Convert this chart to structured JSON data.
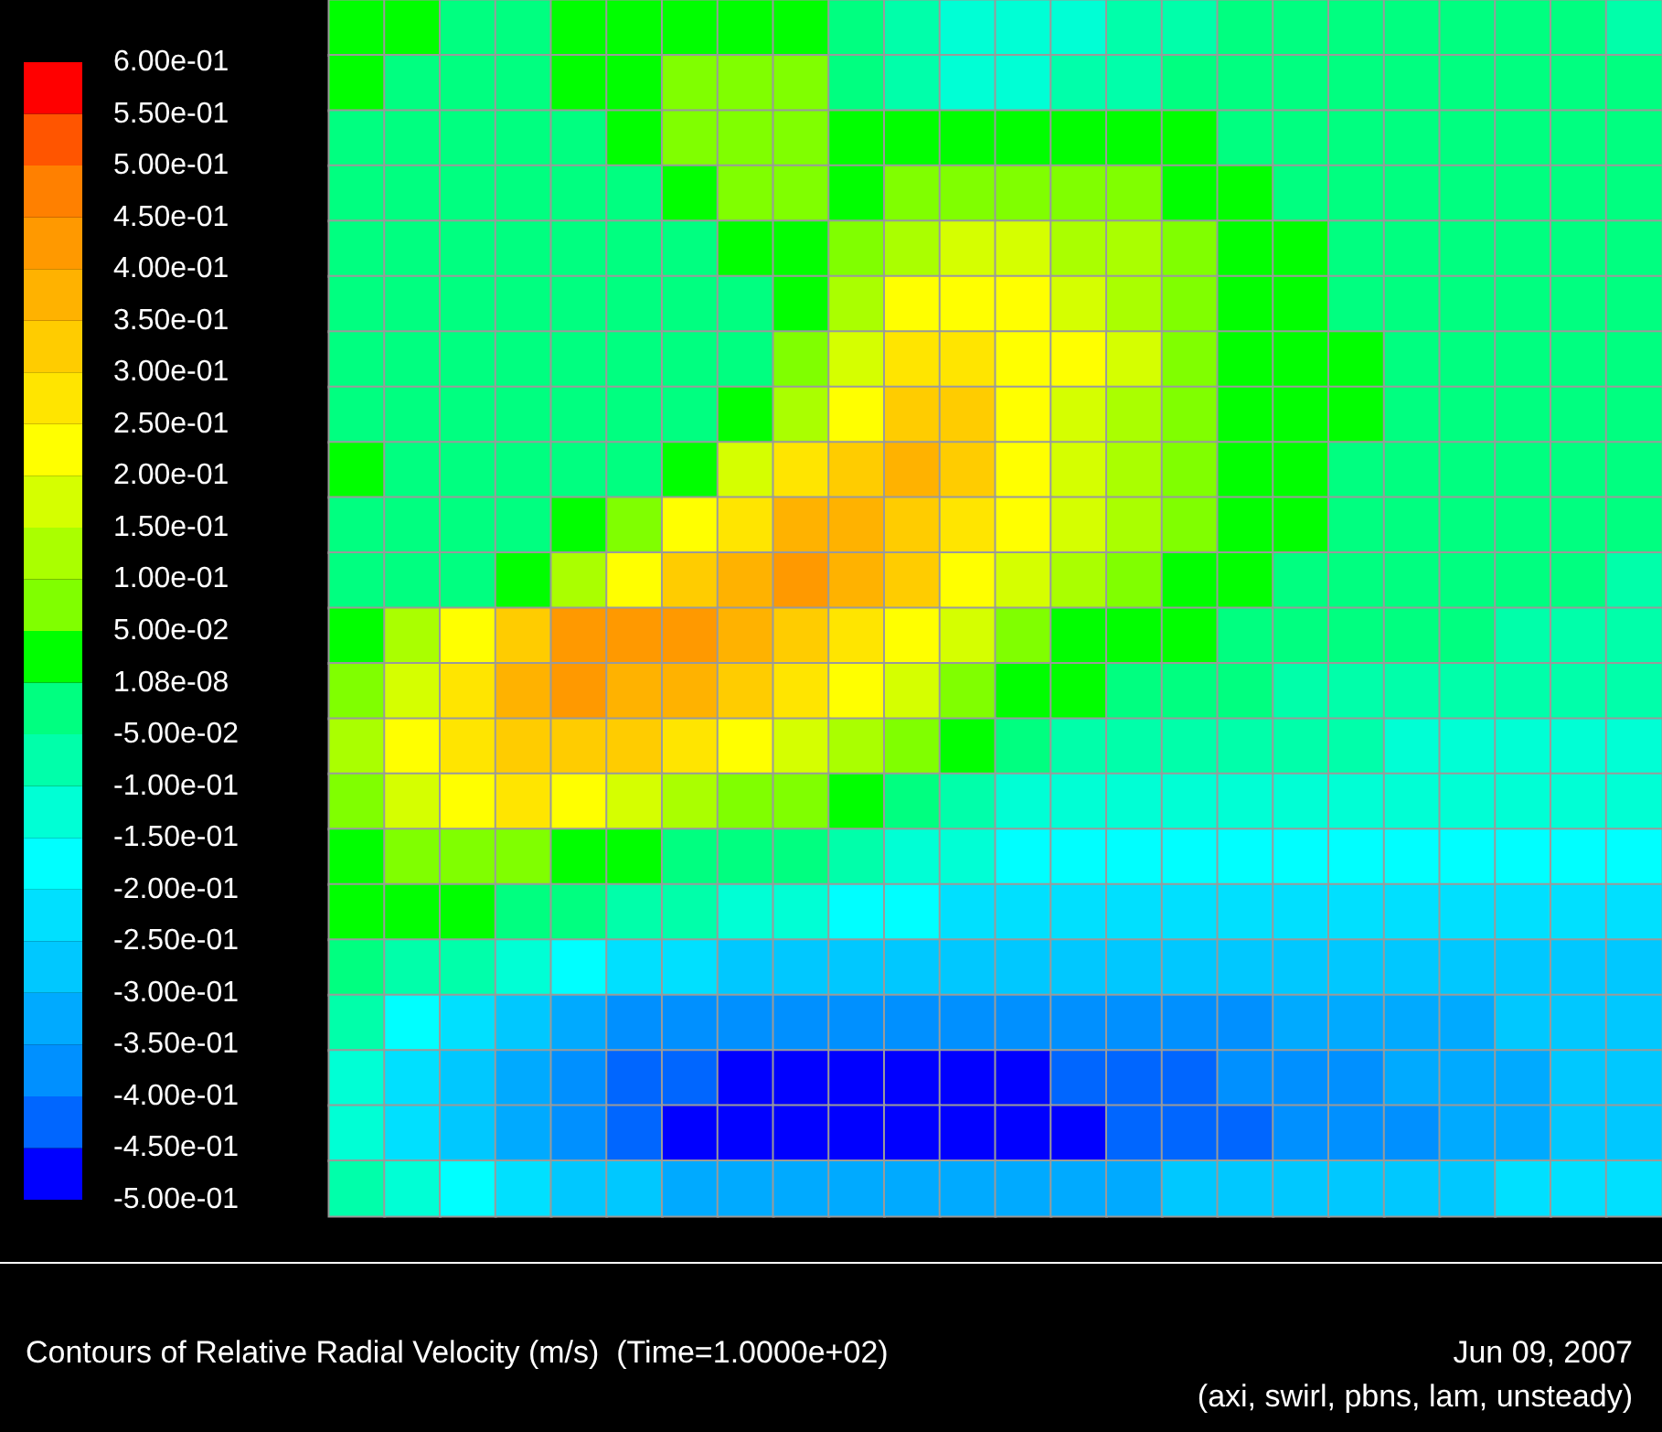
{
  "chart_data": {
    "type": "heatmap",
    "title": "Contours of Relative Radial Velocity (m/s)  (Time=1.0000e+02)",
    "annotations": [
      "Jun 09, 2007",
      "(axi, swirl, pbns, lam, unsteady)"
    ],
    "categories": [
      null,
      null,
      null,
      null,
      null,
      null,
      null,
      null,
      null,
      null,
      null,
      null,
      null,
      null,
      null,
      null,
      null,
      null,
      null,
      null,
      null,
      null,
      null,
      null
    ],
    "y_categories": [
      null,
      null,
      null,
      null,
      null,
      null,
      null,
      null,
      null,
      null,
      null,
      null,
      null,
      null,
      null,
      null,
      null,
      null,
      null,
      null,
      null,
      null
    ],
    "clim": [
      -0.5,
      0.6
    ],
    "cticks": [
      {
        "value": -0.5,
        "label": "-5.00e-01"
      },
      {
        "value": -0.45,
        "label": "-4.50e-01"
      },
      {
        "value": -0.4,
        "label": "-4.00e-01"
      },
      {
        "value": -0.35,
        "label": "-3.50e-01"
      },
      {
        "value": -0.3,
        "label": "-3.00e-01"
      },
      {
        "value": -0.25,
        "label": "-2.50e-01"
      },
      {
        "value": -0.2,
        "label": "-2.00e-01"
      },
      {
        "value": -0.15,
        "label": "-1.50e-01"
      },
      {
        "value": -0.1,
        "label": "-1.00e-01"
      },
      {
        "value": -0.05,
        "label": "-5.00e-02"
      },
      {
        "value": 1.08e-08,
        "label": "1.08e-08"
      },
      {
        "value": 0.05,
        "label": "5.00e-02"
      },
      {
        "value": 0.1,
        "label": "1.00e-01"
      },
      {
        "value": 0.15,
        "label": "1.50e-01"
      },
      {
        "value": 0.2,
        "label": "2.00e-01"
      },
      {
        "value": 0.25,
        "label": "2.50e-01"
      },
      {
        "value": 0.3,
        "label": "3.00e-01"
      },
      {
        "value": 0.35,
        "label": "3.50e-01"
      },
      {
        "value": 0.4,
        "label": "4.00e-01"
      },
      {
        "value": 0.45,
        "label": "4.50e-01"
      },
      {
        "value": 0.5,
        "label": "5.00e-01"
      },
      {
        "value": 0.55,
        "label": "5.50e-01"
      },
      {
        "value": 0.6,
        "label": "6.00e-01"
      }
    ],
    "colors": [
      "#0000ff",
      "#0066ff",
      "#0090ff",
      "#00aaff",
      "#00c8ff",
      "#00e0ff",
      "#00ffff",
      "#00ffd5",
      "#00ffaa",
      "#00ff80",
      "#00ff00",
      "#80ff00",
      "#aaff00",
      "#d5ff00",
      "#ffff00",
      "#ffe500",
      "#ffcc00",
      "#ffb200",
      "#ff9900",
      "#ff8000",
      "#ff5500",
      "#ff0000"
    ],
    "cells": [
      [
        0.025,
        0.025,
        -0.025,
        -0.025,
        0.025,
        0.025,
        0.025,
        0.025,
        0.025,
        -0.025,
        -0.075,
        -0.125,
        -0.125,
        -0.125,
        -0.075,
        -0.075,
        -0.025,
        -0.025,
        -0.025,
        -0.025,
        -0.025,
        -0.025,
        -0.025,
        -0.075
      ],
      [
        0.025,
        -0.025,
        -0.025,
        -0.025,
        0.025,
        0.025,
        0.075,
        0.075,
        0.075,
        -0.025,
        -0.075,
        -0.125,
        -0.125,
        -0.075,
        -0.075,
        -0.025,
        -0.025,
        -0.025,
        -0.025,
        -0.025,
        -0.025,
        -0.025,
        -0.025,
        -0.025
      ],
      [
        -0.025,
        -0.025,
        -0.025,
        -0.025,
        -0.025,
        0.025,
        0.075,
        0.075,
        0.075,
        0.025,
        0.025,
        0.025,
        0.025,
        0.025,
        0.025,
        0.025,
        -0.025,
        -0.025,
        -0.025,
        -0.025,
        -0.025,
        -0.025,
        -0.025,
        -0.025
      ],
      [
        -0.025,
        -0.025,
        -0.025,
        -0.025,
        -0.025,
        -0.025,
        0.025,
        0.075,
        0.075,
        0.025,
        0.075,
        0.075,
        0.075,
        0.075,
        0.075,
        0.025,
        0.025,
        -0.025,
        -0.025,
        -0.025,
        -0.025,
        -0.025,
        -0.025,
        -0.025
      ],
      [
        -0.025,
        -0.025,
        -0.025,
        -0.025,
        -0.025,
        -0.025,
        -0.025,
        0.025,
        0.025,
        0.075,
        0.125,
        0.175,
        0.175,
        0.125,
        0.125,
        0.075,
        0.025,
        0.025,
        -0.025,
        -0.025,
        -0.025,
        -0.025,
        -0.025,
        -0.025
      ],
      [
        -0.025,
        -0.025,
        -0.025,
        -0.025,
        -0.025,
        -0.025,
        -0.025,
        -0.025,
        0.025,
        0.125,
        0.225,
        0.225,
        0.225,
        0.175,
        0.125,
        0.075,
        0.025,
        0.025,
        -0.025,
        -0.025,
        -0.025,
        -0.025,
        -0.025,
        -0.025
      ],
      [
        -0.025,
        -0.025,
        -0.025,
        -0.025,
        -0.025,
        -0.025,
        -0.025,
        -0.025,
        0.075,
        0.175,
        0.275,
        0.275,
        0.225,
        0.225,
        0.175,
        0.075,
        0.025,
        0.025,
        0.025,
        -0.025,
        -0.025,
        -0.025,
        -0.025,
        -0.025
      ],
      [
        -0.025,
        -0.025,
        -0.025,
        -0.025,
        -0.025,
        -0.025,
        -0.025,
        0.025,
        0.125,
        0.225,
        0.325,
        0.325,
        0.225,
        0.175,
        0.125,
        0.075,
        0.025,
        0.025,
        0.025,
        -0.025,
        -0.025,
        -0.025,
        -0.025,
        -0.025
      ],
      [
        0.025,
        -0.025,
        -0.025,
        -0.025,
        -0.025,
        -0.025,
        0.025,
        0.175,
        0.275,
        0.325,
        0.375,
        0.325,
        0.225,
        0.175,
        0.125,
        0.075,
        0.025,
        0.025,
        -0.025,
        -0.025,
        -0.025,
        -0.025,
        -0.025,
        -0.025
      ],
      [
        -0.025,
        -0.025,
        -0.025,
        -0.025,
        0.025,
        0.075,
        0.225,
        0.275,
        0.375,
        0.375,
        0.325,
        0.275,
        0.225,
        0.175,
        0.125,
        0.075,
        0.025,
        0.025,
        -0.025,
        -0.025,
        -0.025,
        -0.025,
        -0.025,
        -0.025
      ],
      [
        -0.025,
        -0.025,
        -0.025,
        0.025,
        0.125,
        0.225,
        0.325,
        0.375,
        0.425,
        0.375,
        0.325,
        0.225,
        0.175,
        0.125,
        0.075,
        0.025,
        0.025,
        -0.025,
        -0.025,
        -0.025,
        -0.025,
        -0.025,
        -0.025,
        -0.075
      ],
      [
        0.025,
        0.125,
        0.225,
        0.325,
        0.425,
        0.425,
        0.425,
        0.375,
        0.325,
        0.275,
        0.225,
        0.175,
        0.075,
        0.025,
        0.025,
        0.025,
        -0.025,
        -0.025,
        -0.025,
        -0.025,
        -0.025,
        -0.075,
        -0.075,
        -0.075
      ],
      [
        0.075,
        0.175,
        0.275,
        0.375,
        0.425,
        0.375,
        0.375,
        0.325,
        0.275,
        0.225,
        0.175,
        0.075,
        0.025,
        0.025,
        -0.025,
        -0.025,
        -0.025,
        -0.075,
        -0.075,
        -0.075,
        -0.075,
        -0.075,
        -0.075,
        -0.075
      ],
      [
        0.125,
        0.225,
        0.275,
        0.325,
        0.325,
        0.325,
        0.275,
        0.225,
        0.175,
        0.125,
        0.075,
        0.025,
        -0.025,
        -0.075,
        -0.075,
        -0.075,
        -0.075,
        -0.075,
        -0.075,
        -0.125,
        -0.125,
        -0.125,
        -0.125,
        -0.125
      ],
      [
        0.075,
        0.175,
        0.225,
        0.275,
        0.225,
        0.175,
        0.125,
        0.075,
        0.075,
        0.025,
        -0.025,
        -0.075,
        -0.125,
        -0.125,
        -0.125,
        -0.125,
        -0.125,
        -0.125,
        -0.125,
        -0.125,
        -0.125,
        -0.125,
        -0.125,
        -0.125
      ],
      [
        0.025,
        0.075,
        0.075,
        0.075,
        0.025,
        0.025,
        -0.025,
        -0.025,
        -0.025,
        -0.075,
        -0.125,
        -0.125,
        -0.175,
        -0.175,
        -0.175,
        -0.175,
        -0.175,
        -0.175,
        -0.175,
        -0.175,
        -0.175,
        -0.175,
        -0.175,
        -0.175
      ],
      [
        0.025,
        0.025,
        0.025,
        -0.025,
        -0.025,
        -0.075,
        -0.075,
        -0.125,
        -0.125,
        -0.175,
        -0.175,
        -0.225,
        -0.225,
        -0.225,
        -0.225,
        -0.225,
        -0.225,
        -0.225,
        -0.225,
        -0.225,
        -0.225,
        -0.225,
        -0.225,
        -0.225
      ],
      [
        -0.025,
        -0.075,
        -0.075,
        -0.125,
        -0.175,
        -0.225,
        -0.225,
        -0.275,
        -0.275,
        -0.275,
        -0.275,
        -0.275,
        -0.275,
        -0.275,
        -0.275,
        -0.275,
        -0.275,
        -0.275,
        -0.275,
        -0.275,
        -0.275,
        -0.275,
        -0.275,
        -0.275
      ],
      [
        -0.075,
        -0.175,
        -0.225,
        -0.275,
        -0.325,
        -0.375,
        -0.375,
        -0.375,
        -0.375,
        -0.375,
        -0.375,
        -0.375,
        -0.375,
        -0.375,
        -0.375,
        -0.375,
        -0.375,
        -0.325,
        -0.325,
        -0.325,
        -0.325,
        -0.275,
        -0.275,
        -0.275
      ],
      [
        -0.125,
        -0.225,
        -0.275,
        -0.325,
        -0.375,
        -0.425,
        -0.425,
        -0.475,
        -0.475,
        -0.475,
        -0.475,
        -0.475,
        -0.475,
        -0.425,
        -0.425,
        -0.425,
        -0.375,
        -0.375,
        -0.375,
        -0.325,
        -0.325,
        -0.325,
        -0.275,
        -0.275
      ],
      [
        -0.125,
        -0.225,
        -0.275,
        -0.325,
        -0.375,
        -0.425,
        -0.475,
        -0.475,
        -0.475,
        -0.475,
        -0.475,
        -0.475,
        -0.475,
        -0.475,
        -0.425,
        -0.425,
        -0.425,
        -0.375,
        -0.375,
        -0.375,
        -0.325,
        -0.325,
        -0.275,
        -0.275
      ],
      [
        -0.075,
        -0.125,
        -0.175,
        -0.225,
        -0.275,
        -0.275,
        -0.325,
        -0.325,
        -0.325,
        -0.325,
        -0.325,
        -0.325,
        -0.325,
        -0.325,
        -0.325,
        -0.275,
        -0.275,
        -0.275,
        -0.275,
        -0.275,
        -0.275,
        -0.225,
        -0.225,
        -0.225
      ]
    ]
  }
}
